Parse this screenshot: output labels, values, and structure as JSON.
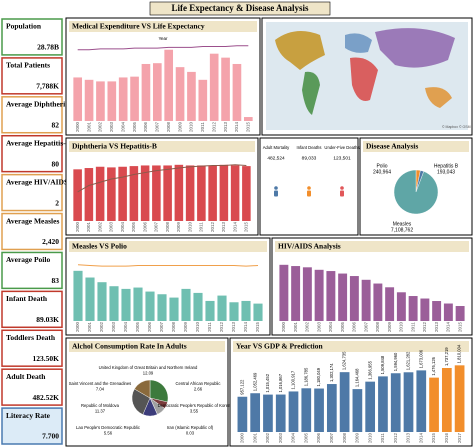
{
  "title": "Life Expectancy & Disease Analysis",
  "kpis": [
    {
      "label": "Population",
      "value": "28.78B",
      "color": "#4a9a4a"
    },
    {
      "label": "Total Patients",
      "value": "7,788K",
      "color": "#c0392b"
    },
    {
      "label": "Average Diphtheria",
      "value": "82",
      "color": "#e0a050"
    },
    {
      "label": "Average Hepatitis-B",
      "value": "80",
      "color": "#c0392b"
    },
    {
      "label": "Average HIV/AIDS",
      "value": "2",
      "color": "#e0a050"
    },
    {
      "label": "Average Measles",
      "value": "2,420",
      "color": "#e0a050"
    },
    {
      "label": "Average Poilo",
      "value": "83",
      "color": "#4a9a4a"
    },
    {
      "label": "Infant Death",
      "value": "89.03K",
      "color": "#c0392b"
    },
    {
      "label": "Toddlers Death",
      "value": "123.50K",
      "color": "#c0392b"
    },
    {
      "label": "Adult Death",
      "value": "482.52K",
      "color": "#c0392b"
    },
    {
      "label": "Literacy Rate",
      "value": "7.700",
      "color": "#4a7ab0"
    }
  ],
  "map": {
    "attribution": "© Mapbox © OSM"
  },
  "mortality": [
    {
      "label": "Adult Mortality",
      "value": "482,524",
      "color": "#4e79a7"
    },
    {
      "label": "Infant Deaths",
      "value": "89,033",
      "color": "#f28e2b"
    },
    {
      "label": "Under-Five Deaths",
      "value": "123,501",
      "color": "#e15759"
    }
  ],
  "chart_data": [
    {
      "type": "bar-line",
      "title": "Medical Expenditure VS Life Expectancy",
      "annotation": "Year",
      "categories": [
        "2000",
        "2001",
        "2002",
        "2003",
        "2004",
        "2005",
        "2006",
        "2007",
        "2008",
        "2009",
        "2010",
        "2011",
        "2012",
        "2013",
        "2014",
        "2015"
      ],
      "series": [
        {
          "color": "#f4a3ab",
          "values": [
            55,
            52,
            50,
            50,
            55,
            56,
            72,
            73,
            90,
            68,
            62,
            52,
            85,
            80,
            72,
            5
          ]
        },
        {
          "color": "#9b4f8c",
          "values": [
            90,
            90,
            91,
            91,
            91,
            92,
            92,
            92,
            93,
            93,
            93,
            94,
            94,
            94,
            95,
            95
          ]
        }
      ]
    },
    {
      "type": "bar-line",
      "title": "Diphtheria VS Hepatitis-B",
      "categories": [
        "2000",
        "2001",
        "2002",
        "2003",
        "2004",
        "2005",
        "2006",
        "2007",
        "2008",
        "2009",
        "2010",
        "2011",
        "2012",
        "2013",
        "2014",
        "2015"
      ],
      "series": [
        {
          "color": "#d94a4f",
          "values": [
            80,
            82,
            84,
            83,
            84,
            85,
            86,
            86,
            86,
            87,
            86,
            86,
            86,
            87,
            86,
            85
          ]
        },
        {
          "color": "#8b5a4a",
          "values": [
            45,
            55,
            60,
            65,
            68,
            72,
            75,
            78,
            80,
            82,
            84,
            85,
            86,
            86,
            87,
            86
          ]
        }
      ]
    },
    {
      "type": "bar-line",
      "title": "Measles VS Polio",
      "categories": [
        "2000",
        "2001",
        "2002",
        "2003",
        "2004",
        "2005",
        "2006",
        "2007",
        "2008",
        "2009",
        "2010",
        "2011",
        "2012",
        "2013",
        "2014",
        "2015"
      ],
      "series": [
        {
          "color": "#6fbfb1",
          "values": [
            75,
            65,
            58,
            52,
            48,
            50,
            44,
            40,
            35,
            48,
            42,
            30,
            38,
            28,
            30,
            26
          ]
        },
        {
          "color": "#f0a04b",
          "values": [
            84,
            83,
            82,
            82,
            82,
            83,
            83,
            83,
            83,
            83,
            83,
            83,
            83,
            83,
            82,
            83
          ]
        }
      ]
    },
    {
      "type": "bar",
      "title": "HIV/AIDS Analysis",
      "categories": [
        "2000",
        "2001",
        "2002",
        "2003",
        "2004",
        "2005",
        "2006",
        "2007",
        "2008",
        "2009",
        "2010",
        "2011",
        "2012",
        "2013",
        "2014",
        "2015"
      ],
      "series": [
        {
          "color": "#9b5e99",
          "values": [
            90,
            88,
            86,
            82,
            80,
            76,
            72,
            66,
            60,
            54,
            46,
            40,
            36,
            32,
            28,
            24
          ]
        }
      ]
    },
    {
      "type": "pie",
      "title": "Disease Analysis",
      "categories": [
        "Polio",
        "Hepatitis B",
        "Measles"
      ],
      "values": [
        240964,
        193043,
        7108762
      ],
      "value_labels": [
        "240,964",
        "193,043",
        "7,108,762"
      ],
      "colors": [
        "#f28e2b",
        "#4e79a7",
        "#5fa6a6"
      ]
    },
    {
      "type": "pie",
      "title": "Alchol Consumption Rate In Adults",
      "categories": [
        "United Kingdom of Great Britain and Northern Ireland",
        "Central African Republic",
        "Democratic People's Republic of Korea",
        "Iran (Islamic Republic of)",
        "Lao People's Democratic Republic",
        "Republic of Moldova",
        "Saint Vincent and the Grenadines"
      ],
      "values": [
        12.09,
        2.66,
        3.55,
        0.03,
        5.56,
        11.37,
        7.04
      ],
      "colors": [
        "#3c7a3c",
        "#7a3c3c",
        "#a0a0a0",
        "#e15759",
        "#3c3c7a",
        "#555555",
        "#8a6a3c"
      ]
    },
    {
      "type": "bar",
      "title": "Year VS GDP & Prediction",
      "categories": [
        "2000",
        "2001",
        "2002",
        "2003",
        "2004",
        "2005",
        "2006",
        "2007",
        "2008",
        "2009",
        "2010",
        "2011",
        "2012",
        "2013",
        "2014",
        "2015",
        "2016",
        "2017"
      ],
      "series": [
        {
          "colors": [
            "#4e79a7",
            "#4e79a7",
            "#4e79a7",
            "#4e79a7",
            "#4e79a7",
            "#4e79a7",
            "#4e79a7",
            "#4e79a7",
            "#4e79a7",
            "#4e79a7",
            "#4e79a7",
            "#4e79a7",
            "#4e79a7",
            "#4e79a7",
            "#4e79a7",
            "#f28e2b",
            "#f28e2b",
            "#f28e2b"
          ],
          "values": [
            957122,
            1052469,
            1015452,
            1016867,
            1100917,
            1186785,
            1180049,
            1302174,
            1624735,
            1164468,
            1366955,
            1509848,
            1594960,
            1621282,
            1673006,
            1476126,
            1737219,
            1810004
          ],
          "value_labels": [
            "957,122",
            "1,052,469",
            "1,015,452",
            "1,016,867",
            "1,100,917",
            "1,186,785",
            "1,180,049",
            "1,302,174",
            "1,624,735",
            "1,164,468",
            "1,366,955",
            "1,509,848",
            "1,594,960",
            "1,621,282",
            "1,673,006",
            "1,476,126",
            "1,737,219",
            "1,810,004"
          ]
        }
      ]
    }
  ]
}
